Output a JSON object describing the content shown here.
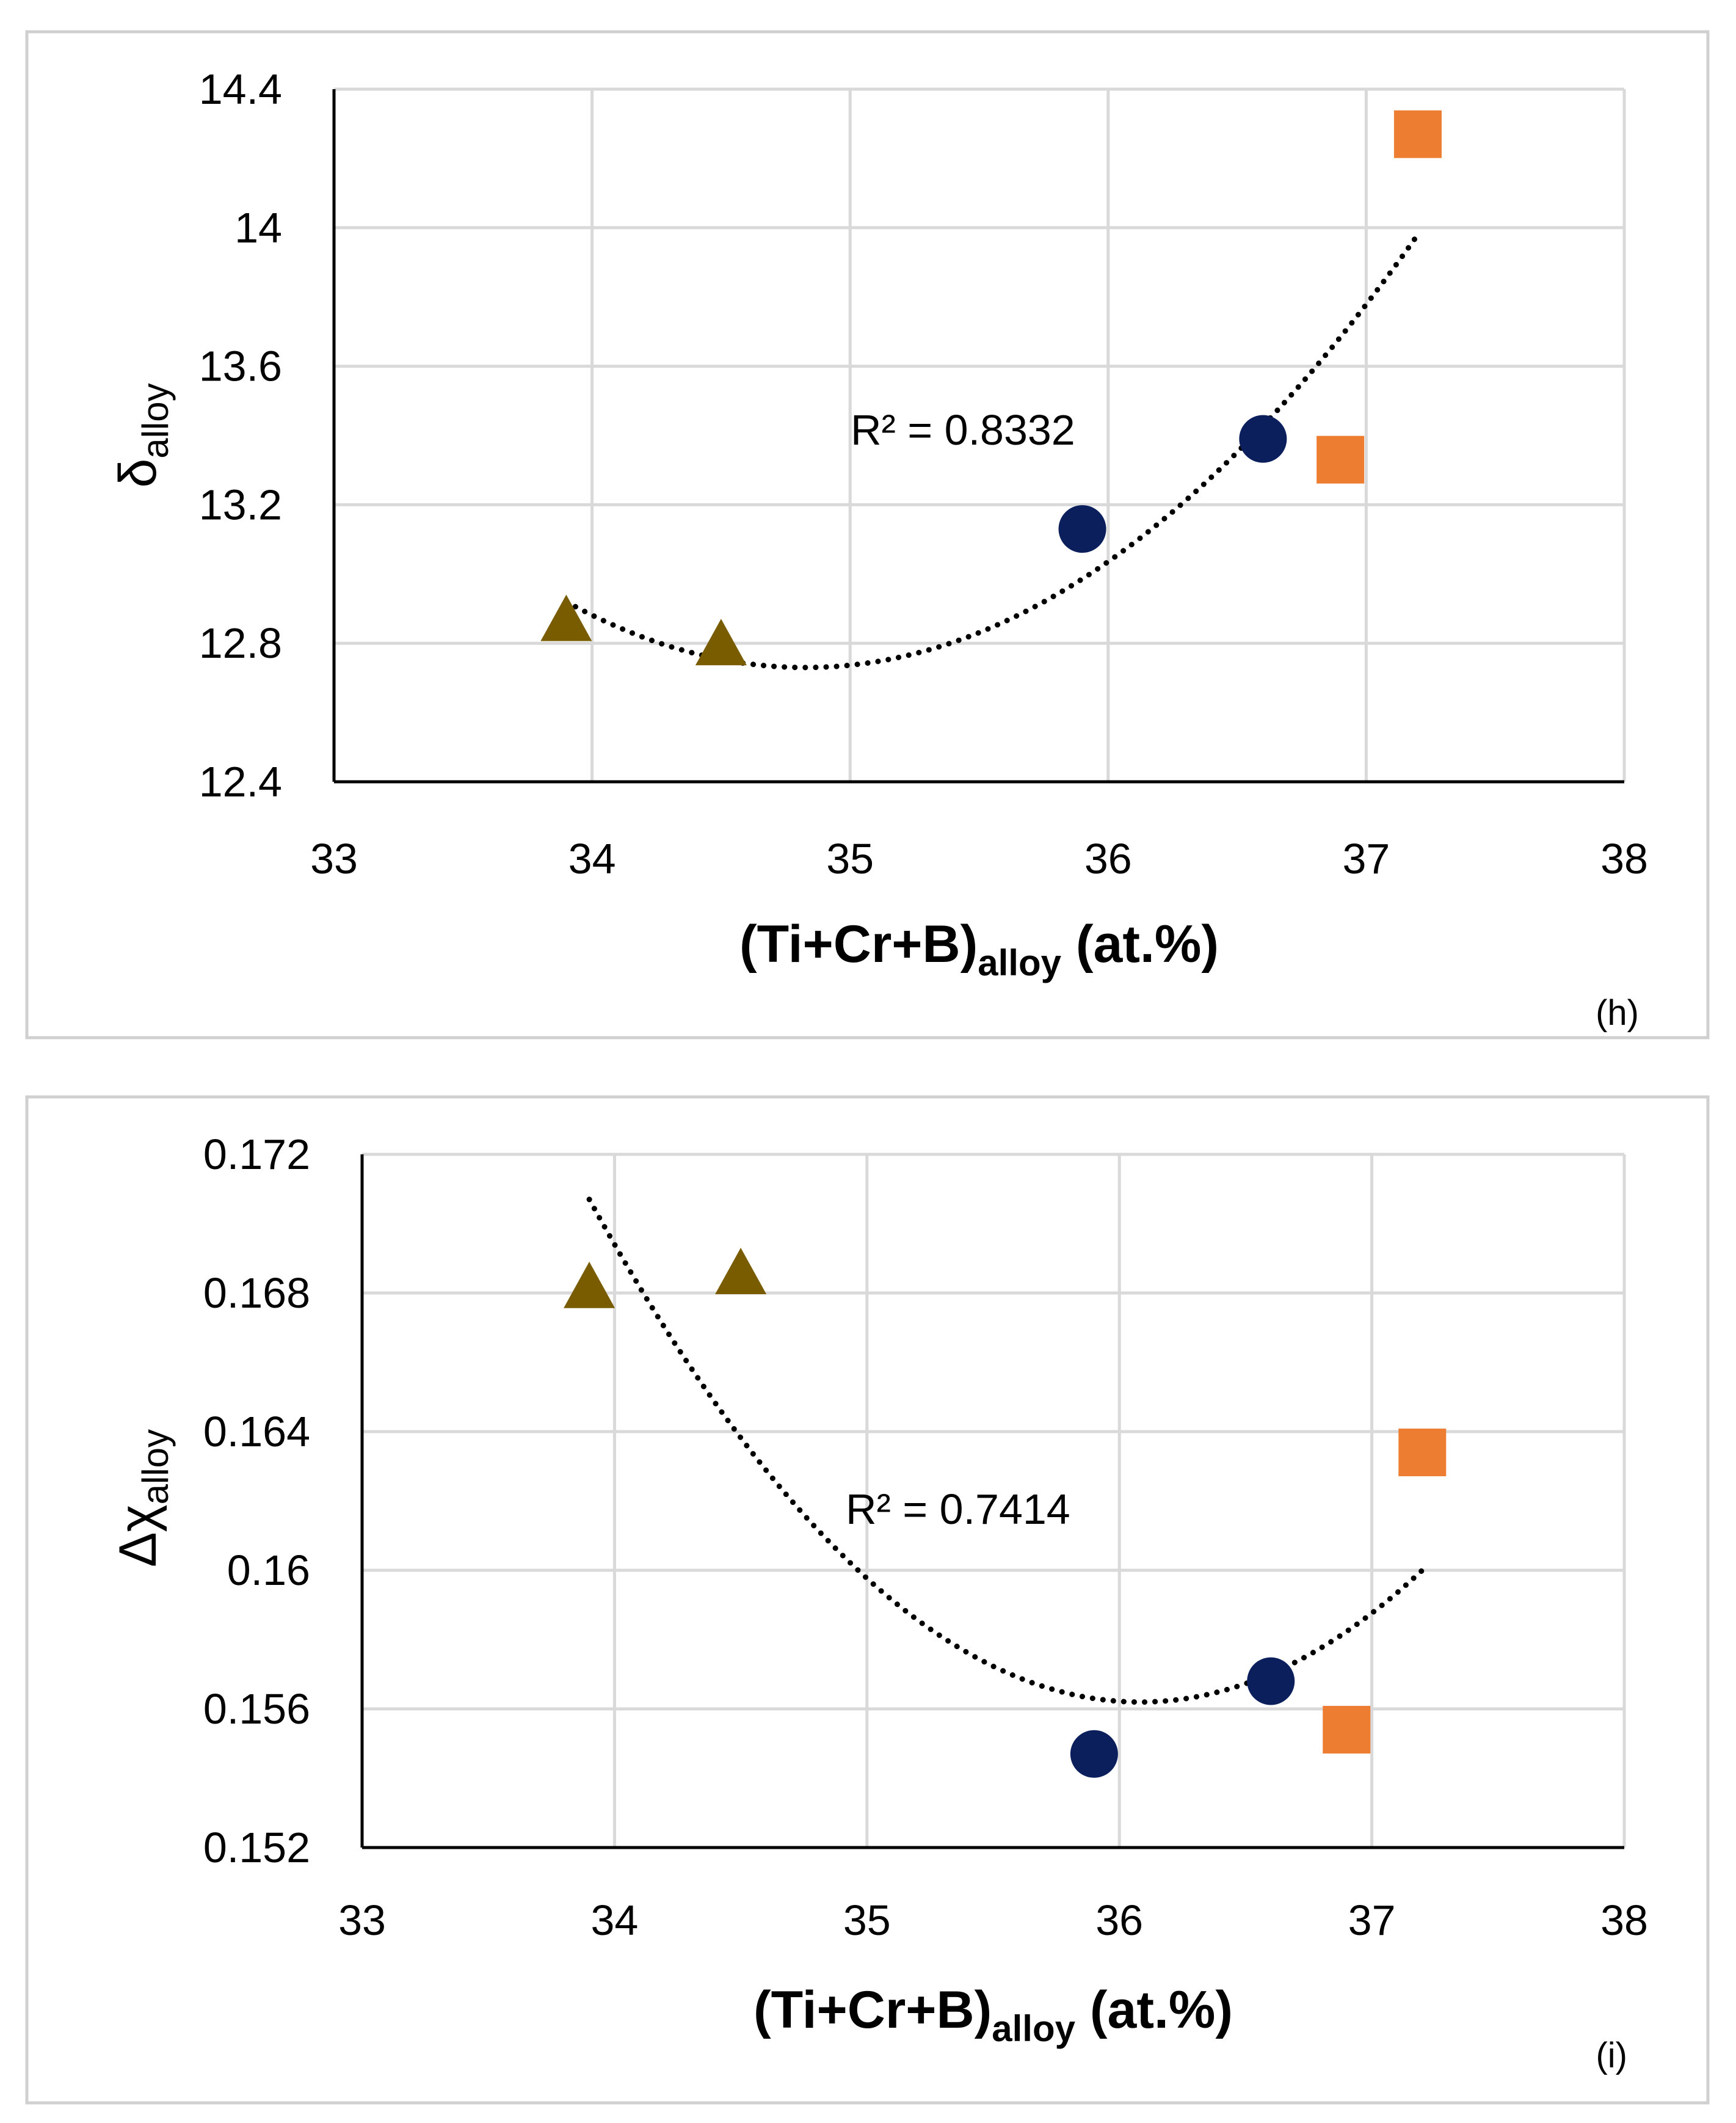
{
  "colors": {
    "triangle": "#7A5C00",
    "circle": "#0B1F5C",
    "square": "#ED7D31",
    "grid": "#D9D9D9",
    "frame": "#D0D0D0",
    "axis": "#000000",
    "trend": "#000000"
  },
  "chart_data": [
    {
      "type": "scatter",
      "panel_label": "(h)",
      "ylabel_symbol": "δ",
      "ylabel_sub": "alloy",
      "xlabel_main": "(Ti+Cr+B)",
      "xlabel_sub": "alloy",
      "xlabel_tail": " (at.%)",
      "xlim": [
        33,
        38
      ],
      "ylim": [
        12.4,
        14.4
      ],
      "xticks": [
        33,
        34,
        35,
        36,
        37,
        38
      ],
      "xtick_labels": [
        "33",
        "34",
        "35",
        "36",
        "37",
        "38"
      ],
      "yticks": [
        12.4,
        12.8,
        13.2,
        13.6,
        14.0,
        14.4
      ],
      "ytick_labels": [
        "12.4",
        "12.8",
        "13.2",
        "13.6",
        "14",
        "14.4"
      ],
      "grid": true,
      "series": [
        {
          "name": "triangle",
          "marker": "triangle",
          "points": [
            [
              33.9,
              12.86
            ],
            [
              34.5,
              12.79
            ]
          ]
        },
        {
          "name": "circle",
          "marker": "circle",
          "points": [
            [
              35.9,
              13.13
            ],
            [
              36.6,
              13.39
            ]
          ]
        },
        {
          "name": "square",
          "marker": "square",
          "points": [
            [
              36.9,
              13.33
            ],
            [
              37.2,
              14.27
            ]
          ]
        }
      ],
      "trendline": {
        "type": "polynomial-2",
        "x_range": [
          33.9,
          37.2
        ],
        "points": [
          [
            33.9,
            12.92
          ],
          [
            34.85,
            12.73
          ],
          [
            37.2,
            13.98
          ]
        ]
      },
      "r2_label": "R² = 0.8332"
    },
    {
      "type": "scatter",
      "panel_label": "(i)",
      "ylabel_symbol": "Δχ",
      "ylabel_sub": "alloy",
      "xlabel_main": "(Ti+Cr+B)",
      "xlabel_sub": "alloy",
      "xlabel_tail": " (at.%)",
      "xlim": [
        33,
        38
      ],
      "ylim": [
        0.152,
        0.172
      ],
      "xticks": [
        33,
        34,
        35,
        36,
        37,
        38
      ],
      "xtick_labels": [
        "33",
        "34",
        "35",
        "36",
        "37",
        "38"
      ],
      "yticks": [
        0.152,
        0.156,
        0.16,
        0.164,
        0.168,
        0.172
      ],
      "ytick_labels": [
        "0.152",
        "0.156",
        "0.16",
        "0.164",
        "0.168",
        "0.172"
      ],
      "grid": true,
      "series": [
        {
          "name": "triangle",
          "marker": "triangle",
          "points": [
            [
              33.9,
              0.1681
            ],
            [
              34.5,
              0.1685
            ]
          ]
        },
        {
          "name": "circle",
          "marker": "circle",
          "points": [
            [
              35.9,
              0.1547
            ],
            [
              36.6,
              0.1568
            ]
          ]
        },
        {
          "name": "square",
          "marker": "square",
          "points": [
            [
              36.9,
              0.1554
            ],
            [
              37.2,
              0.1634
            ]
          ]
        }
      ],
      "trendline": {
        "type": "polynomial-2",
        "x_range": [
          33.9,
          37.2
        ],
        "points": [
          [
            33.9,
            0.1707
          ],
          [
            36.05,
            0.1562
          ],
          [
            37.2,
            0.16
          ]
        ]
      },
      "r2_label": "R² = 0.7414"
    }
  ]
}
